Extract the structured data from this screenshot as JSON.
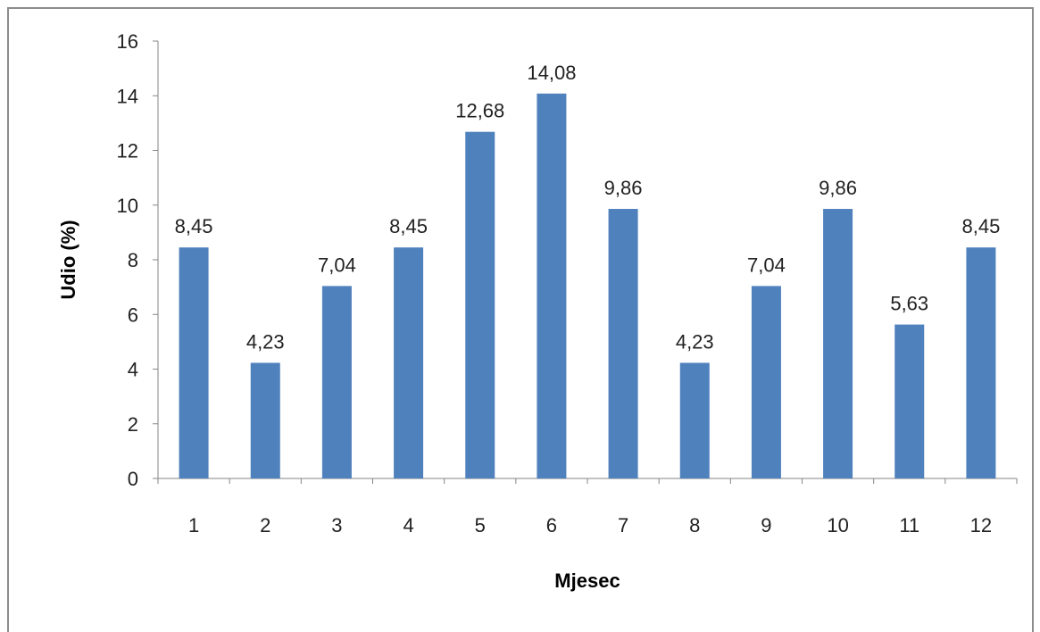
{
  "chart_data": {
    "type": "bar",
    "categories": [
      "1",
      "2",
      "3",
      "4",
      "5",
      "6",
      "7",
      "8",
      "9",
      "10",
      "11",
      "12"
    ],
    "values": [
      8.45,
      4.23,
      7.04,
      8.45,
      12.68,
      14.08,
      9.86,
      4.23,
      7.04,
      9.86,
      5.63,
      8.45
    ],
    "data_labels": [
      "8,45",
      "4,23",
      "7,04",
      "8,45",
      "12,68",
      "14,08",
      "9,86",
      "4,23",
      "7,04",
      "9,86",
      "5,63",
      "8,45"
    ],
    "y_ticks": [
      0,
      2,
      4,
      6,
      8,
      10,
      12,
      14,
      16
    ],
    "ylim": [
      0,
      16
    ],
    "xlabel": "Mjesec",
    "ylabel": "Udio (%)",
    "grid": false,
    "legend": "none",
    "bar_color": "#4f81bd",
    "axis_color": "#868686"
  }
}
